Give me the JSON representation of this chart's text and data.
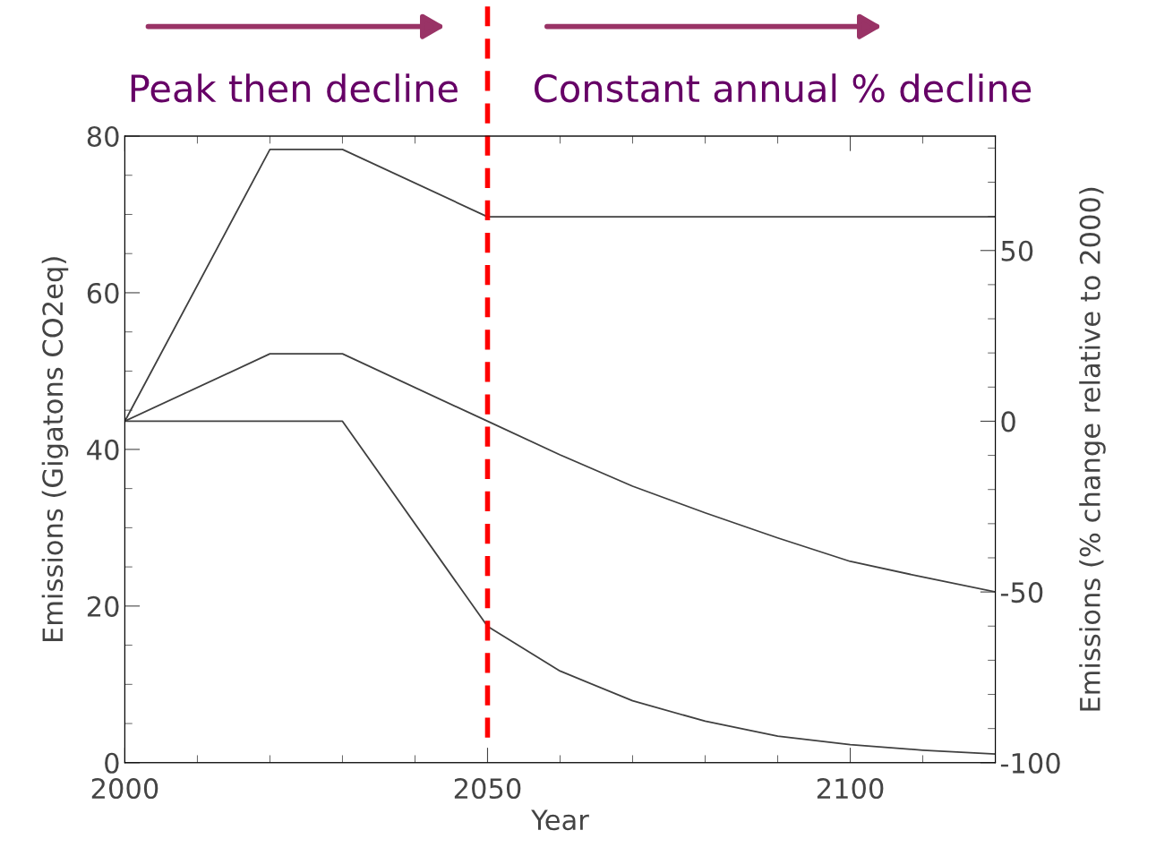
{
  "chart_data": {
    "type": "line",
    "xlabel": "Year",
    "ylabel": "Emissions (Gigatons CO2eq)",
    "y2label": "Emissions (% change relative to 2000)",
    "xlim": [
      2000,
      2120
    ],
    "xticks": [
      2000,
      2050,
      2100
    ],
    "ylim": [
      0,
      80
    ],
    "yticks": [
      0,
      20,
      40,
      60,
      80
    ],
    "y2lim": [
      -100,
      83.5
    ],
    "y2ticks": [
      -100,
      -50,
      0,
      50
    ],
    "grid": false,
    "legend": false,
    "marker": "none",
    "line_style": "solid",
    "series": [
      {
        "color": "#404040",
        "x": [
          2000,
          2020,
          2030,
          2050,
          2120
        ],
        "values": [
          43.6,
          78.3,
          78.3,
          69.7,
          69.7
        ]
      },
      {
        "color": "#404040",
        "x": [
          2000,
          2020,
          2030,
          2050,
          2060,
          2070,
          2080,
          2090,
          2100,
          2110,
          2120
        ],
        "values": [
          43.6,
          52.2,
          52.2,
          43.6,
          39.3,
          35.3,
          31.9,
          28.7,
          25.7,
          23.7,
          21.8
        ]
      },
      {
        "color": "#404040",
        "x": [
          2000,
          2030,
          2050,
          2060,
          2070,
          2080,
          2090,
          2100,
          2110,
          2120
        ],
        "values": [
          43.6,
          43.6,
          17.4,
          11.7,
          7.9,
          5.3,
          3.4,
          2.3,
          1.6,
          1.1
        ]
      }
    ],
    "ref_lines": [
      {
        "axis": "x",
        "value": 2050,
        "color": "#ff0000",
        "line_style": "dashed"
      }
    ],
    "annotations": [
      "Peak then decline",
      "Constant annual % decline"
    ]
  }
}
